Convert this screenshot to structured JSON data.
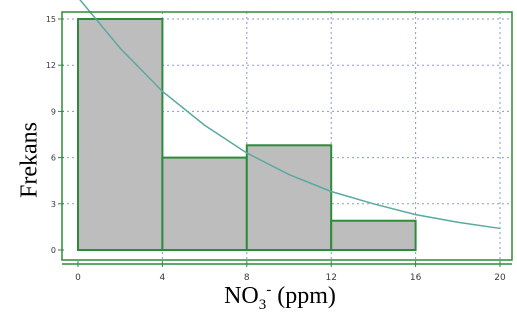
{
  "chart_data": {
    "type": "bar",
    "title": "",
    "ylabel": "Frekans",
    "xlabel_main": "NO",
    "xlabel_sub": "3",
    "xlabel_sup": "-",
    "xlabel_unit": " (ppm)",
    "xlim": [
      0,
      20
    ],
    "ylim": [
      0,
      15
    ],
    "x_ticks": [
      "0",
      "4",
      "8",
      "12",
      "16",
      "20"
    ],
    "y_ticks": [
      "0",
      "3",
      "6",
      "9",
      "12",
      "15"
    ],
    "bins": [
      {
        "x0": 0,
        "x1": 4,
        "value": 15
      },
      {
        "x0": 4,
        "x1": 8,
        "value": 6
      },
      {
        "x0": 8,
        "x1": 12,
        "value": 6.8
      },
      {
        "x0": 12,
        "x1": 16,
        "value": 1.9
      }
    ],
    "fit_curve": {
      "type": "exponential",
      "points": [
        [
          0,
          16.4
        ],
        [
          2,
          13.1
        ],
        [
          4,
          10.3
        ],
        [
          6,
          8.1
        ],
        [
          8,
          6.3
        ],
        [
          10,
          4.9
        ],
        [
          12,
          3.8
        ],
        [
          14,
          3.0
        ],
        [
          16,
          2.3
        ],
        [
          18,
          1.8
        ],
        [
          20,
          1.4
        ]
      ]
    },
    "grid": true,
    "colors": {
      "bar_fill": "#bdbdbd",
      "bar_stroke": "#2e8b3a",
      "curve": "#5aa9a0",
      "grid": "#6a7fd0",
      "axis": "#2e8b3a"
    }
  }
}
